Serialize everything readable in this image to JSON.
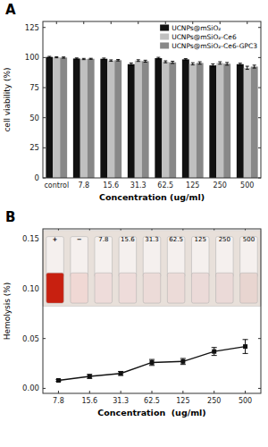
{
  "chart_data": [
    {
      "type": "bar",
      "title": "A",
      "categories": [
        "control",
        "7.8",
        "15.6",
        "31.3",
        "62.5",
        "125",
        "250",
        "500"
      ],
      "series": [
        {
          "name": "UCNPs@mSiO₂",
          "color": "#111111",
          "values": [
            100.5,
            99.2,
            99.0,
            94.5,
            99.5,
            98.5,
            93.5,
            94.5
          ],
          "errors": [
            0.5,
            0.5,
            0.6,
            1.0,
            0.7,
            0.6,
            1.2,
            0.8
          ]
        },
        {
          "name": "UCNPs@mSiO₂-Ce6",
          "color": "#c0c0c0",
          "values": [
            100.2,
            98.8,
            97.5,
            97.5,
            96.5,
            94.8,
            95.5,
            91.5
          ],
          "errors": [
            0.4,
            0.5,
            0.6,
            0.7,
            0.8,
            0.9,
            1.0,
            1.3
          ]
        },
        {
          "name": "UCNPs@mSiO₂-Ce6-GPC3",
          "color": "#888888",
          "values": [
            100.0,
            99.0,
            97.8,
            97.0,
            96.0,
            95.5,
            94.8,
            92.5
          ],
          "errors": [
            0.5,
            0.4,
            0.6,
            0.8,
            0.9,
            1.0,
            1.1,
            1.2
          ]
        }
      ],
      "xlabel": "Concentration (ug/ml)",
      "ylabel": "cell viability (%)",
      "ylim": [
        0,
        130
      ],
      "yticks": [
        0,
        25,
        50,
        75,
        100,
        125
      ],
      "legend": "upper right",
      "grid": false
    },
    {
      "type": "line",
      "title": "B",
      "categories": [
        "7.8",
        "15.6",
        "31.3",
        "62.5",
        "125",
        "250",
        "500"
      ],
      "values": [
        0.008,
        0.012,
        0.015,
        0.026,
        0.027,
        0.037,
        0.042
      ],
      "errors": [
        0.001,
        0.002,
        0.002,
        0.003,
        0.003,
        0.004,
        0.007
      ],
      "color": "#111111",
      "marker": "square",
      "xlabel": "Concentration  (ug/ml)",
      "ylabel": "Hemolysis (%)",
      "ylim": [
        -0.005,
        0.16
      ],
      "yticks": [
        {
          "value": 0,
          "label": "0.00"
        },
        0.05,
        {
          "value": 0.1,
          "label": "0.10"
        },
        0.15
      ],
      "annotations": [
        "+",
        "−",
        "7.8",
        "15.6",
        "31.3",
        "62.5",
        "125",
        "250",
        "500"
      ],
      "grid": false
    }
  ]
}
